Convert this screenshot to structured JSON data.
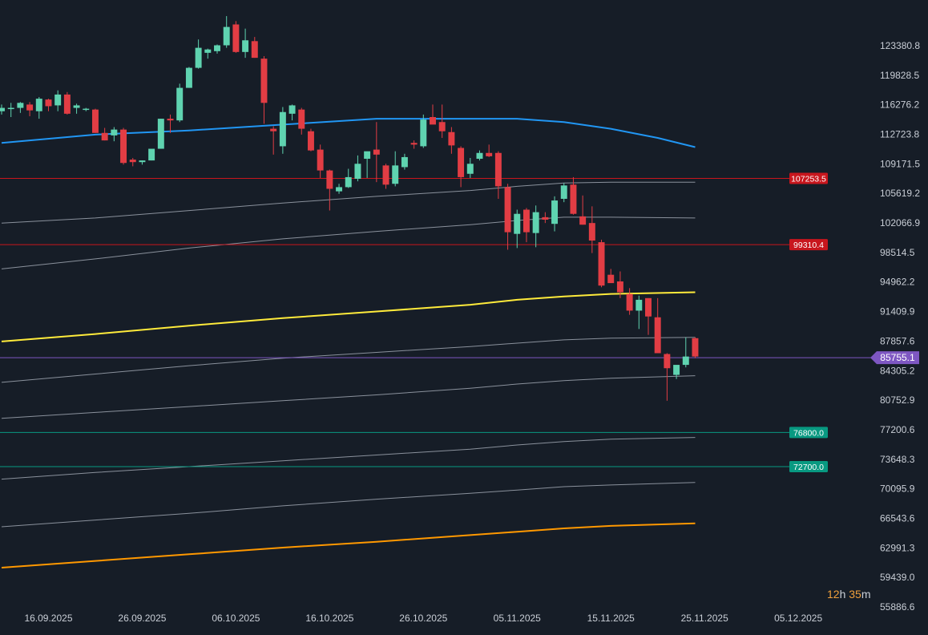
{
  "colors": {
    "background": "#161d27",
    "up": "#5fd3b0",
    "down": "#e23d44",
    "sma_blue": "#2196f3",
    "sma_yellow": "#ffeb3b",
    "sma_orange": "#ff9800",
    "band_gray": "#8a919c",
    "resistance": "#c8161d",
    "support": "#089981",
    "current_price": "#7e57c2"
  },
  "countdown": {
    "hours": "12",
    "hours_unit": "h",
    "minutes": "35",
    "minutes_unit": "m"
  },
  "chart_data": {
    "type": "candlestick",
    "title": "",
    "y_ticks": [
      "123380.8",
      "119828.5",
      "116276.2",
      "112723.8",
      "109171.5",
      "105619.2",
      "102066.9",
      "98514.5",
      "94962.2",
      "91409.9",
      "87857.6",
      "84305.2",
      "80752.9",
      "77200.6",
      "73648.3",
      "70095.9",
      "66543.6",
      "62991.3",
      "59439.0",
      "55886.6"
    ],
    "x_ticks": [
      {
        "date": "2025-09-16",
        "label": "16.09.2025"
      },
      {
        "date": "2025-09-26",
        "label": "26.09.2025"
      },
      {
        "date": "2025-10-06",
        "label": "06.10.2025"
      },
      {
        "date": "2025-10-16",
        "label": "16.10.2025"
      },
      {
        "date": "2025-10-26",
        "label": "26.10.2025"
      },
      {
        "date": "2025-11-05",
        "label": "05.11.2025"
      },
      {
        "date": "2025-11-15",
        "label": "15.11.2025"
      },
      {
        "date": "2025-11-25",
        "label": "25.11.2025"
      },
      {
        "date": "2025-12-05",
        "label": "05.12.2025"
      }
    ],
    "ylim": [
      55886.6,
      126900
    ],
    "xlim": [
      "2025-09-11",
      "2025-12-12"
    ],
    "candles": [
      {
        "date": "2025-09-11",
        "o": 115300,
        "h": 116100,
        "l": 114900,
        "c": 115700
      },
      {
        "date": "2025-09-12",
        "o": 115600,
        "h": 116300,
        "l": 114600,
        "c": 115700
      },
      {
        "date": "2025-09-13",
        "o": 115700,
        "h": 116400,
        "l": 115100,
        "c": 116300
      },
      {
        "date": "2025-09-14",
        "o": 116100,
        "h": 116400,
        "l": 114700,
        "c": 115400
      },
      {
        "date": "2025-09-15",
        "o": 115300,
        "h": 117000,
        "l": 114400,
        "c": 116800
      },
      {
        "date": "2025-09-16",
        "o": 116700,
        "h": 116800,
        "l": 115300,
        "c": 115900
      },
      {
        "date": "2025-09-17",
        "o": 116000,
        "h": 117800,
        "l": 115300,
        "c": 117300
      },
      {
        "date": "2025-09-18",
        "o": 117300,
        "h": 117600,
        "l": 114900,
        "c": 115000
      },
      {
        "date": "2025-09-19",
        "o": 115700,
        "h": 116200,
        "l": 115000,
        "c": 116000
      },
      {
        "date": "2025-09-20",
        "o": 115600,
        "h": 115700,
        "l": 115300,
        "c": 115600
      },
      {
        "date": "2025-09-21",
        "o": 115500,
        "h": 115600,
        "l": 112700,
        "c": 112700
      },
      {
        "date": "2025-09-22",
        "o": 112700,
        "h": 113300,
        "l": 111800,
        "c": 111800
      },
      {
        "date": "2025-09-23",
        "o": 112400,
        "h": 113400,
        "l": 111700,
        "c": 113100
      },
      {
        "date": "2025-09-24",
        "o": 113100,
        "h": 113300,
        "l": 108900,
        "c": 109100
      },
      {
        "date": "2025-09-25",
        "o": 109500,
        "h": 109700,
        "l": 108700,
        "c": 109200
      },
      {
        "date": "2025-09-26",
        "o": 109200,
        "h": 109400,
        "l": 108900,
        "c": 109400
      },
      {
        "date": "2025-09-27",
        "o": 109400,
        "h": 110300,
        "l": 109400,
        "c": 110800
      },
      {
        "date": "2025-09-28",
        "o": 110800,
        "h": 114400,
        "l": 110800,
        "c": 114400
      },
      {
        "date": "2025-09-29",
        "o": 114400,
        "h": 114900,
        "l": 112700,
        "c": 114200
      },
      {
        "date": "2025-09-30",
        "o": 114200,
        "h": 118600,
        "l": 114000,
        "c": 118100
      },
      {
        "date": "2025-10-01",
        "o": 118100,
        "h": 120600,
        "l": 118100,
        "c": 120500
      },
      {
        "date": "2025-10-02",
        "o": 120500,
        "h": 123900,
        "l": 120400,
        "c": 122900
      },
      {
        "date": "2025-10-03",
        "o": 122300,
        "h": 122800,
        "l": 121600,
        "c": 122700
      },
      {
        "date": "2025-10-04",
        "o": 122500,
        "h": 123300,
        "l": 122200,
        "c": 123200
      },
      {
        "date": "2025-10-05",
        "o": 123200,
        "h": 126700,
        "l": 122900,
        "c": 125400
      },
      {
        "date": "2025-10-06",
        "o": 125700,
        "h": 126100,
        "l": 122300,
        "c": 122400
      },
      {
        "date": "2025-10-07",
        "o": 122400,
        "h": 125200,
        "l": 121700,
        "c": 123800
      },
      {
        "date": "2025-10-08",
        "o": 123700,
        "h": 124200,
        "l": 121700,
        "c": 121700
      },
      {
        "date": "2025-10-09",
        "o": 121600,
        "h": 121900,
        "l": 113800,
        "c": 116300
      },
      {
        "date": "2025-10-10",
        "o": 113200,
        "h": 113500,
        "l": 110100,
        "c": 112900
      },
      {
        "date": "2025-10-11",
        "o": 111100,
        "h": 115800,
        "l": 110200,
        "c": 115200
      },
      {
        "date": "2025-10-12",
        "o": 115000,
        "h": 116100,
        "l": 114200,
        "c": 116000
      },
      {
        "date": "2025-10-13",
        "o": 115500,
        "h": 115700,
        "l": 112500,
        "c": 113200
      },
      {
        "date": "2025-10-14",
        "o": 112900,
        "h": 113200,
        "l": 110500,
        "c": 110600
      },
      {
        "date": "2025-10-15",
        "o": 110700,
        "h": 111300,
        "l": 107300,
        "c": 108200
      },
      {
        "date": "2025-10-16",
        "o": 108200,
        "h": 108300,
        "l": 103400,
        "c": 106000
      },
      {
        "date": "2025-10-17",
        "o": 105700,
        "h": 106600,
        "l": 105400,
        "c": 106200
      },
      {
        "date": "2025-10-18",
        "o": 106200,
        "h": 108400,
        "l": 106100,
        "c": 107400
      },
      {
        "date": "2025-10-19",
        "o": 107200,
        "h": 110000,
        "l": 106900,
        "c": 109000
      },
      {
        "date": "2025-10-20",
        "o": 109600,
        "h": 110100,
        "l": 107300,
        "c": 110500
      },
      {
        "date": "2025-10-21",
        "o": 110700,
        "h": 114000,
        "l": 106800,
        "c": 110100
      },
      {
        "date": "2025-10-22",
        "o": 108800,
        "h": 109000,
        "l": 106000,
        "c": 106500
      },
      {
        "date": "2025-10-23",
        "o": 106600,
        "h": 110500,
        "l": 106300,
        "c": 108800
      },
      {
        "date": "2025-10-24",
        "o": 108600,
        "h": 110200,
        "l": 108300,
        "c": 109800
      },
      {
        "date": "2025-10-25",
        "o": 111500,
        "h": 111800,
        "l": 110800,
        "c": 111300
      },
      {
        "date": "2025-10-26",
        "o": 111100,
        "h": 114900,
        "l": 110900,
        "c": 114300
      },
      {
        "date": "2025-10-27",
        "o": 114600,
        "h": 116100,
        "l": 113800,
        "c": 113700
      },
      {
        "date": "2025-10-28",
        "o": 114000,
        "h": 116100,
        "l": 112100,
        "c": 112900
      },
      {
        "date": "2025-10-29",
        "o": 112800,
        "h": 113400,
        "l": 110200,
        "c": 111200
      },
      {
        "date": "2025-10-30",
        "o": 110900,
        "h": 111100,
        "l": 106200,
        "c": 107400
      },
      {
        "date": "2025-10-31",
        "o": 107800,
        "h": 109700,
        "l": 107300,
        "c": 109000
      },
      {
        "date": "2025-11-01",
        "o": 109600,
        "h": 110600,
        "l": 109400,
        "c": 110300
      },
      {
        "date": "2025-11-02",
        "o": 110300,
        "h": 111300,
        "l": 109800,
        "c": 109900
      },
      {
        "date": "2025-11-03",
        "o": 110300,
        "h": 110500,
        "l": 104800,
        "c": 106300
      },
      {
        "date": "2025-11-04",
        "o": 106200,
        "h": 106600,
        "l": 98700,
        "c": 100800
      },
      {
        "date": "2025-11-05",
        "o": 100600,
        "h": 103500,
        "l": 98900,
        "c": 103000
      },
      {
        "date": "2025-11-06",
        "o": 103500,
        "h": 103700,
        "l": 99600,
        "c": 100800
      },
      {
        "date": "2025-11-07",
        "o": 100700,
        "h": 104000,
        "l": 99000,
        "c": 103200
      },
      {
        "date": "2025-11-08",
        "o": 102600,
        "h": 103200,
        "l": 101900,
        "c": 102300
      },
      {
        "date": "2025-11-09",
        "o": 101800,
        "h": 105100,
        "l": 100900,
        "c": 104600
      },
      {
        "date": "2025-11-10",
        "o": 104800,
        "h": 106700,
        "l": 104400,
        "c": 106400
      },
      {
        "date": "2025-11-11",
        "o": 106500,
        "h": 107400,
        "l": 102900,
        "c": 103000
      },
      {
        "date": "2025-11-12",
        "o": 102700,
        "h": 105200,
        "l": 101700,
        "c": 101700
      },
      {
        "date": "2025-11-13",
        "o": 101900,
        "h": 103900,
        "l": 98300,
        "c": 99800
      },
      {
        "date": "2025-11-14",
        "o": 99600,
        "h": 99900,
        "l": 94200,
        "c": 94400
      },
      {
        "date": "2025-11-15",
        "o": 95700,
        "h": 96400,
        "l": 94800,
        "c": 94700
      },
      {
        "date": "2025-11-16",
        "o": 94900,
        "h": 96100,
        "l": 92900,
        "c": 93600
      },
      {
        "date": "2025-11-17",
        "o": 93400,
        "h": 94100,
        "l": 90900,
        "c": 91400
      },
      {
        "date": "2025-11-18",
        "o": 91400,
        "h": 93200,
        "l": 89200,
        "c": 92700
      },
      {
        "date": "2025-11-19",
        "o": 92900,
        "h": 92900,
        "l": 88500,
        "c": 90700
      },
      {
        "date": "2025-11-20",
        "o": 90600,
        "h": 92900,
        "l": 86300,
        "c": 86300
      },
      {
        "date": "2025-11-21",
        "o": 86200,
        "h": 86300,
        "l": 80600,
        "c": 84500
      },
      {
        "date": "2025-11-22",
        "o": 83700,
        "h": 84800,
        "l": 83200,
        "c": 84900
      },
      {
        "date": "2025-11-23",
        "o": 84900,
        "h": 88200,
        "l": 84600,
        "c": 85900
      },
      {
        "date": "2025-11-24",
        "o": 88100,
        "h": 88200,
        "l": 85700,
        "c": 85900
      }
    ],
    "lines": [
      {
        "kind": "sma_blue",
        "points": [
          [
            "2025-09-11",
            111500
          ],
          [
            "2025-09-21",
            112500
          ],
          [
            "2025-10-01",
            113000
          ],
          [
            "2025-10-11",
            113700
          ],
          [
            "2025-10-21",
            114400
          ],
          [
            "2025-10-31",
            114400
          ],
          [
            "2025-11-05",
            114400
          ],
          [
            "2025-11-10",
            114000
          ],
          [
            "2025-11-15",
            113200
          ],
          [
            "2025-11-20",
            112100
          ],
          [
            "2025-11-24",
            111000
          ]
        ]
      },
      {
        "kind": "band_upper",
        "points": [
          [
            "2025-09-11",
            101900
          ],
          [
            "2025-09-21",
            102500
          ],
          [
            "2025-10-01",
            103400
          ],
          [
            "2025-10-11",
            104300
          ],
          [
            "2025-10-21",
            105100
          ],
          [
            "2025-10-31",
            105800
          ],
          [
            "2025-11-05",
            106300
          ],
          [
            "2025-11-10",
            106700
          ],
          [
            "2025-11-15",
            106800
          ],
          [
            "2025-11-24",
            106800
          ]
        ]
      },
      {
        "kind": "band_upper_mid",
        "points": [
          [
            "2025-09-11",
            96400
          ],
          [
            "2025-09-21",
            97600
          ],
          [
            "2025-10-01",
            98900
          ],
          [
            "2025-10-11",
            100000
          ],
          [
            "2025-10-21",
            100900
          ],
          [
            "2025-10-31",
            101700
          ],
          [
            "2025-11-05",
            102200
          ],
          [
            "2025-11-10",
            102600
          ],
          [
            "2025-11-15",
            102600
          ],
          [
            "2025-11-24",
            102500
          ]
        ]
      },
      {
        "kind": "sma_yellow",
        "points": [
          [
            "2025-09-11",
            87700
          ],
          [
            "2025-09-21",
            88600
          ],
          [
            "2025-10-01",
            89600
          ],
          [
            "2025-10-11",
            90500
          ],
          [
            "2025-10-21",
            91300
          ],
          [
            "2025-10-31",
            92100
          ],
          [
            "2025-11-05",
            92700
          ],
          [
            "2025-11-10",
            93100
          ],
          [
            "2025-11-15",
            93400
          ],
          [
            "2025-11-24",
            93600
          ]
        ]
      },
      {
        "kind": "band_lower_mid",
        "points": [
          [
            "2025-09-11",
            82800
          ],
          [
            "2025-09-21",
            83800
          ],
          [
            "2025-10-01",
            84800
          ],
          [
            "2025-10-11",
            85700
          ],
          [
            "2025-10-21",
            86400
          ],
          [
            "2025-10-31",
            87100
          ],
          [
            "2025-11-05",
            87500
          ],
          [
            "2025-11-10",
            87900
          ],
          [
            "2025-11-15",
            88100
          ],
          [
            "2025-11-24",
            88200
          ]
        ]
      },
      {
        "kind": "band_mid",
        "points": [
          [
            "2025-09-11",
            78500
          ],
          [
            "2025-09-21",
            79200
          ],
          [
            "2025-10-01",
            79900
          ],
          [
            "2025-10-11",
            80600
          ],
          [
            "2025-10-21",
            81300
          ],
          [
            "2025-10-31",
            82100
          ],
          [
            "2025-11-05",
            82600
          ],
          [
            "2025-11-10",
            83000
          ],
          [
            "2025-11-15",
            83300
          ],
          [
            "2025-11-24",
            83600
          ]
        ]
      },
      {
        "kind": "band_lower",
        "points": [
          [
            "2025-09-11",
            71200
          ],
          [
            "2025-09-21",
            72000
          ],
          [
            "2025-10-01",
            72700
          ],
          [
            "2025-10-11",
            73400
          ],
          [
            "2025-10-21",
            74100
          ],
          [
            "2025-10-31",
            74800
          ],
          [
            "2025-11-05",
            75300
          ],
          [
            "2025-11-10",
            75700
          ],
          [
            "2025-11-15",
            76000
          ],
          [
            "2025-11-24",
            76200
          ]
        ]
      },
      {
        "kind": "band_lowest",
        "points": [
          [
            "2025-09-11",
            65500
          ],
          [
            "2025-09-21",
            66300
          ],
          [
            "2025-10-01",
            67100
          ],
          [
            "2025-10-11",
            68000
          ],
          [
            "2025-10-21",
            68800
          ],
          [
            "2025-10-31",
            69500
          ],
          [
            "2025-11-05",
            69900
          ],
          [
            "2025-11-10",
            70300
          ],
          [
            "2025-11-15",
            70500
          ],
          [
            "2025-11-24",
            70800
          ]
        ]
      },
      {
        "kind": "sma_orange",
        "points": [
          [
            "2025-09-11",
            60600
          ],
          [
            "2025-09-21",
            61400
          ],
          [
            "2025-10-01",
            62200
          ],
          [
            "2025-10-11",
            63000
          ],
          [
            "2025-10-21",
            63700
          ],
          [
            "2025-10-31",
            64500
          ],
          [
            "2025-11-05",
            64900
          ],
          [
            "2025-11-10",
            65300
          ],
          [
            "2025-11-15",
            65600
          ],
          [
            "2025-11-24",
            65900
          ]
        ]
      }
    ],
    "levels": [
      {
        "kind": "resistance",
        "price": 107253.5,
        "label": "107253.5"
      },
      {
        "kind": "resistance",
        "price": 99310.4,
        "label": "99310.4"
      },
      {
        "kind": "support",
        "price": 76800.0,
        "label": "76800.0"
      },
      {
        "kind": "support",
        "price": 72700.0,
        "label": "72700.0"
      }
    ],
    "current_price": {
      "price": 85755.1,
      "label": "85755.1"
    }
  }
}
